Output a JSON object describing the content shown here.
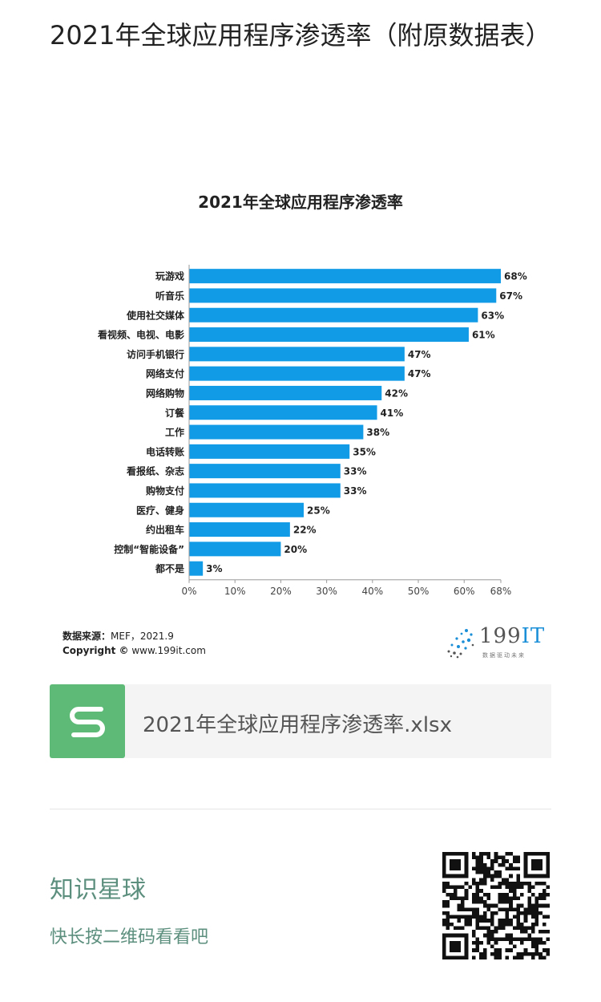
{
  "article": {
    "title": "2021年全球应用程序渗透率（附原数据表）"
  },
  "chart_data": {
    "type": "bar",
    "orientation": "horizontal",
    "title": "2021年全球应用程序渗透率",
    "categories": [
      "玩游戏",
      "听音乐",
      "使用社交媒体",
      "看视频、电视、电影",
      "访问手机银行",
      "网络支付",
      "网络购物",
      "订餐",
      "工作",
      "电话转账",
      "看报纸、杂志",
      "购物支付",
      "医疗、健身",
      "约出租车",
      "控制“智能设备”",
      "都不是"
    ],
    "values": [
      68,
      67,
      63,
      61,
      47,
      47,
      42,
      41,
      38,
      35,
      33,
      33,
      25,
      22,
      20,
      3
    ],
    "value_labels": [
      "68%",
      "67%",
      "63%",
      "61%",
      "47%",
      "47%",
      "42%",
      "41%",
      "38%",
      "35%",
      "33%",
      "33%",
      "25%",
      "22%",
      "20%",
      "3%"
    ],
    "xticks": [
      "0%",
      "10%",
      "20%",
      "30%",
      "40%",
      "50%",
      "60%",
      "68%"
    ],
    "xtick_values": [
      0,
      10,
      20,
      30,
      40,
      50,
      60,
      68
    ],
    "xlim": [
      0,
      68
    ],
    "bar_color": "#119ae6",
    "grid": false
  },
  "source": {
    "label": "数据来源：",
    "text": "MEF，2021.9",
    "copyright_label": "Copyright ©",
    "copyright_text": " www.199it.com"
  },
  "logo": {
    "num": "199",
    "it": "IT",
    "tagline": "数据驱动未来"
  },
  "file": {
    "name": "2021年全球应用程序渗透率.xlsx",
    "icon": "spreadsheet-s-icon",
    "icon_color": "#5dbb77"
  },
  "planet": {
    "title": "知识星球",
    "subtitle": "快长按二维码看看吧",
    "accent": "#5d8f7e"
  }
}
